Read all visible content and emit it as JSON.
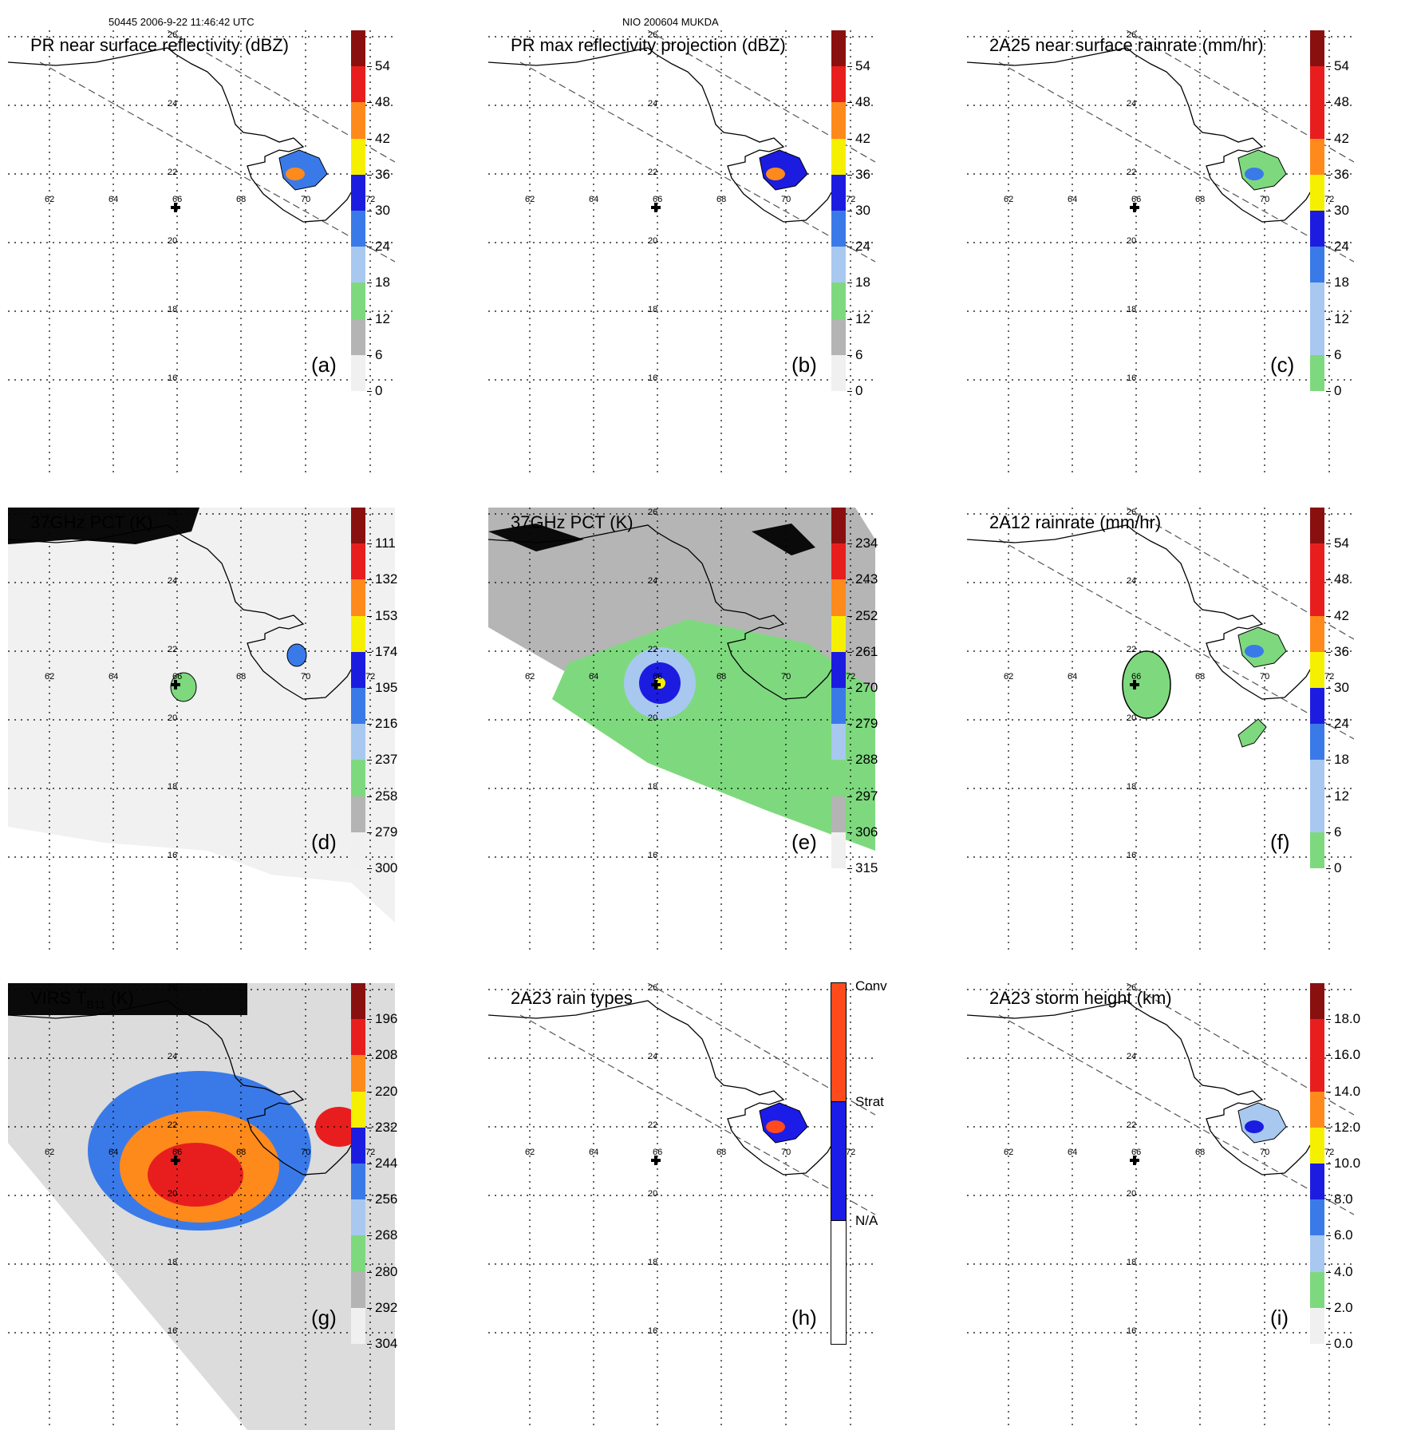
{
  "header": {
    "orbit_time": "50445 2006-9-22 11:46:42 UTC",
    "storm_id": "NIO 200604 MUKDA"
  },
  "lat_labels": [
    "26",
    "24",
    "22",
    "20",
    "18",
    "16"
  ],
  "lon_labels": [
    "62",
    "64",
    "66",
    "68",
    "70",
    "72"
  ],
  "colors": {
    "grey_light": "#f0f0f0",
    "grey_mid": "#b4b4b4",
    "green": "#7ed97e",
    "blue_light": "#a8c8f0",
    "blue_mid": "#3a7ae8",
    "blue_dark": "#1c1ce0",
    "yellow": "#f5f000",
    "orange": "#ff8a1c",
    "red": "#e81e1e",
    "dark_red": "#8a1010",
    "conv": "#ff4a1c",
    "strat": "#1c1ce8"
  },
  "panels": [
    {
      "label": "(a)",
      "title": "PR near surface reflectivity (dBZ)",
      "bg": "none",
      "cbar_scheme": "dbz",
      "cbar_labels": [
        "54",
        "48",
        "42",
        "36",
        "30",
        "24",
        "18",
        "12",
        "6",
        "0"
      ]
    },
    {
      "label": "(b)",
      "title": "PR max reflectivity projection (dBZ)",
      "bg": "none",
      "cbar_scheme": "dbz",
      "cbar_labels": [
        "54",
        "48",
        "42",
        "36",
        "30",
        "24",
        "18",
        "12",
        "6",
        "0"
      ]
    },
    {
      "label": "(c)",
      "title": "2A25 near surface rainrate (mm/hr)",
      "bg": "none",
      "cbar_scheme": "rain",
      "cbar_labels": [
        "54",
        "48",
        "42",
        "36",
        "30",
        "24",
        "18",
        "12",
        "6",
        "0"
      ]
    },
    {
      "label": "(d)",
      "title": "37GHz PCT (K)",
      "bg": "light",
      "cbar_scheme": "pct",
      "cbar_labels": [
        "111",
        "132",
        "153",
        "174",
        "195",
        "216",
        "237",
        "258",
        "279",
        "300"
      ]
    },
    {
      "label": "(e)",
      "title": "37GHz PCT (K)",
      "bg": "grey",
      "cbar_scheme": "pct",
      "cbar_labels": [
        "234",
        "243",
        "252",
        "261",
        "270",
        "279",
        "288",
        "297",
        "306",
        "315"
      ]
    },
    {
      "label": "(f)",
      "title": "2A12 rainrate (mm/hr)",
      "bg": "none",
      "cbar_scheme": "rain",
      "cbar_labels": [
        "54",
        "48",
        "42",
        "36",
        "30",
        "24",
        "18",
        "12",
        "6",
        "0"
      ]
    },
    {
      "label": "(g)",
      "title_main": "VIRS T",
      "title_sub": "B11",
      "title_tail": " (K)",
      "bg": "virs",
      "cbar_scheme": "pct",
      "cbar_labels": [
        "196",
        "208",
        "220",
        "232",
        "244",
        "256",
        "268",
        "280",
        "292",
        "304"
      ]
    },
    {
      "label": "(h)",
      "title": "2A23 rain types",
      "bg": "none",
      "cbar_scheme": "types",
      "cbar_labels": [
        "Conv",
        "Strat",
        "N/A"
      ]
    },
    {
      "label": "(i)",
      "title": "2A23 storm height (km)",
      "bg": "none",
      "cbar_scheme": "height",
      "cbar_labels": [
        "18.0",
        "16.0",
        "14.0",
        "12.0",
        "10.0",
        "8.0",
        "6.0",
        "4.0",
        "2.0",
        "0.0"
      ]
    }
  ]
}
